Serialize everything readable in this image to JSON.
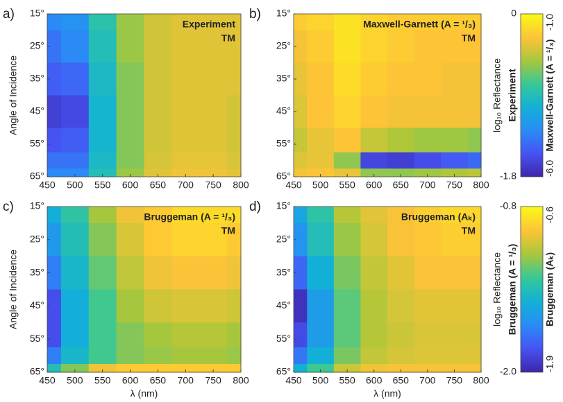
{
  "chart_data": [
    {
      "type": "heatmap",
      "panel_label": "a)",
      "title": "Experiment",
      "subtitle": "TM",
      "ylabel": "Angle of Incidence",
      "colormap": "parula",
      "x": [
        450,
        500,
        550,
        600,
        650,
        700,
        750,
        800
      ],
      "y": [
        15,
        25,
        35,
        45,
        55,
        60,
        65
      ],
      "z": [
        [
          -1.3,
          -1.25,
          -0.85,
          -0.55,
          -0.4,
          -0.35,
          -0.35,
          -0.35
        ],
        [
          -1.4,
          -1.3,
          -0.9,
          -0.55,
          -0.4,
          -0.35,
          -0.35,
          -0.35
        ],
        [
          -1.5,
          -1.45,
          -0.95,
          -0.6,
          -0.4,
          -0.35,
          -0.35,
          -0.35
        ],
        [
          -1.65,
          -1.6,
          -1.0,
          -0.6,
          -0.4,
          -0.35,
          -0.35,
          -0.4
        ],
        [
          -1.55,
          -1.5,
          -1.0,
          -0.6,
          -0.4,
          -0.35,
          -0.35,
          -0.4
        ],
        [
          -1.4,
          -1.4,
          -0.95,
          -0.6,
          -0.38,
          -0.33,
          -0.33,
          -0.38
        ],
        [
          -1.3,
          -1.3,
          -0.9,
          -0.55,
          -0.35,
          -0.3,
          -0.3,
          -0.35
        ]
      ],
      "xlim": [
        450,
        800
      ],
      "ylim": [
        15,
        65
      ],
      "xticks": [
        450,
        500,
        550,
        600,
        650,
        700,
        750,
        800
      ],
      "yticks": [
        {
          "value": 15,
          "label": "15°"
        },
        {
          "value": 25,
          "label": "25°"
        },
        {
          "value": 35,
          "label": "35°"
        },
        {
          "value": 45,
          "label": "45°"
        },
        {
          "value": 55,
          "label": "55°"
        },
        {
          "value": 65,
          "label": "65°"
        }
      ],
      "zlim": [
        -1.8,
        0
      ],
      "colorbar": {
        "side": "left",
        "label": "log₁₀ Reflectance",
        "ticks": [
          0,
          -1.8
        ]
      }
    },
    {
      "type": "heatmap",
      "panel_label": "b)",
      "title": "Maxwell-Garnett (A = ¹/₃)",
      "subtitle": "TM",
      "colormap": "parula",
      "x": [
        450,
        500,
        550,
        600,
        650,
        700,
        750,
        800
      ],
      "y": [
        15,
        25,
        35,
        45,
        55,
        60,
        65
      ],
      "z": [
        [
          -1.6,
          -1.5,
          -1.3,
          -1.5,
          -1.6,
          -1.6,
          -1.6,
          -1.6
        ],
        [
          -1.8,
          -1.6,
          -1.3,
          -1.5,
          -1.6,
          -1.7,
          -1.7,
          -1.7
        ],
        [
          -1.9,
          -1.7,
          -1.4,
          -1.6,
          -1.7,
          -1.7,
          -1.8,
          -1.8
        ],
        [
          -2.0,
          -1.7,
          -1.5,
          -1.7,
          -1.8,
          -1.8,
          -1.8,
          -1.8
        ],
        [
          -2.2,
          -1.9,
          -1.7,
          -2.2,
          -2.4,
          -2.5,
          -2.5,
          -2.6
        ],
        [
          -2.0,
          -1.9,
          -2.6,
          -5.5,
          -5.6,
          -5.4,
          -5.2,
          -5.0
        ],
        [
          -1.8,
          -1.7,
          -1.9,
          -2.6,
          -2.6,
          -2.5,
          -2.4,
          -2.3
        ]
      ],
      "xlim": [
        450,
        800
      ],
      "ylim": [
        15,
        65
      ],
      "xticks": [
        450,
        500,
        550,
        600,
        650,
        700,
        750,
        800
      ],
      "yticks": [
        {
          "value": 15,
          "label": "15°"
        },
        {
          "value": 25,
          "label": "25°"
        },
        {
          "value": 35,
          "label": "35°"
        },
        {
          "value": 45,
          "label": "45°"
        },
        {
          "value": 55,
          "label": "55°"
        },
        {
          "value": 65,
          "label": "65°"
        }
      ],
      "zlim": [
        -6,
        -1
      ],
      "colorbar": {
        "side": "right",
        "ticks": [
          {
            "value": -1,
            "label": "-1.0"
          },
          {
            "value": -6,
            "label": "-6.0"
          }
        ]
      }
    },
    {
      "type": "heatmap",
      "panel_label": "c)",
      "title": "Bruggeman (A = ¹/₃)",
      "subtitle": "TM",
      "ylabel": "Angle of Incidence",
      "xlabel": "λ (nm)",
      "colormap": "parula",
      "x": [
        450,
        500,
        550,
        600,
        650,
        700,
        750,
        800
      ],
      "y": [
        15,
        25,
        35,
        45,
        55,
        60,
        65
      ],
      "z": [
        [
          -1.5,
          -1.35,
          -1.15,
          -1.0,
          -0.95,
          -0.9,
          -0.9,
          -0.9
        ],
        [
          -1.6,
          -1.4,
          -1.2,
          -1.05,
          -0.95,
          -0.92,
          -0.92,
          -0.95
        ],
        [
          -1.7,
          -1.45,
          -1.25,
          -1.1,
          -1.0,
          -0.98,
          -0.98,
          -1.0
        ],
        [
          -1.85,
          -1.5,
          -1.3,
          -1.15,
          -1.07,
          -1.05,
          -1.05,
          -1.07
        ],
        [
          -1.85,
          -1.5,
          -1.3,
          -1.2,
          -1.15,
          -1.12,
          -1.12,
          -1.15
        ],
        [
          -1.7,
          -1.45,
          -1.3,
          -1.2,
          -1.17,
          -1.15,
          -1.15,
          -1.17
        ],
        [
          -1.4,
          -1.2,
          -1.0,
          -0.95,
          -0.95,
          -0.95,
          -0.95,
          -0.95
        ]
      ],
      "xlim": [
        450,
        800
      ],
      "ylim": [
        15,
        65
      ],
      "xticks": [
        450,
        500,
        550,
        600,
        650,
        700,
        750,
        800
      ],
      "yticks": [
        {
          "value": 15,
          "label": "15°"
        },
        {
          "value": 25,
          "label": "25°"
        },
        {
          "value": 35,
          "label": "35°"
        },
        {
          "value": 45,
          "label": "45°"
        },
        {
          "value": 55,
          "label": "55°"
        },
        {
          "value": 65,
          "label": "65°"
        }
      ],
      "zlim": [
        -2,
        -0.8
      ],
      "colorbar": {
        "side": "left",
        "label": "log₁₀ Reflectance",
        "ticks": [
          -0.8,
          {
            "value": -2,
            "label": "-2.0"
          }
        ]
      }
    },
    {
      "type": "heatmap",
      "panel_label": "d)",
      "title": "Bruggeman (Aₖ)",
      "subtitle": "TM",
      "xlabel": "λ (nm)",
      "colormap": "parula",
      "x": [
        450,
        500,
        550,
        600,
        650,
        700,
        750,
        800
      ],
      "y": [
        15,
        25,
        35,
        45,
        55,
        60,
        65
      ],
      "z": [
        [
          -1.4,
          -1.2,
          -0.95,
          -0.85,
          -0.8,
          -0.75,
          -0.72,
          -0.72
        ],
        [
          -1.5,
          -1.25,
          -1.0,
          -0.88,
          -0.8,
          -0.77,
          -0.75,
          -0.75
        ],
        [
          -1.65,
          -1.35,
          -1.05,
          -0.92,
          -0.85,
          -0.8,
          -0.8,
          -0.8
        ],
        [
          -1.85,
          -1.45,
          -1.1,
          -0.95,
          -0.88,
          -0.85,
          -0.85,
          -0.85
        ],
        [
          -1.75,
          -1.45,
          -1.1,
          -0.95,
          -0.9,
          -0.87,
          -0.87,
          -0.87
        ],
        [
          -1.6,
          -1.35,
          -1.05,
          -0.92,
          -0.88,
          -0.86,
          -0.86,
          -0.86
        ],
        [
          -1.35,
          -1.15,
          -0.9,
          -0.82,
          -0.8,
          -0.8,
          -0.8,
          -0.8
        ]
      ],
      "xlim": [
        450,
        800
      ],
      "ylim": [
        15,
        65
      ],
      "xticks": [
        450,
        500,
        550,
        600,
        650,
        700,
        750,
        800
      ],
      "yticks": [
        {
          "value": 15,
          "label": "15°"
        },
        {
          "value": 25,
          "label": "25°"
        },
        {
          "value": 35,
          "label": "35°"
        },
        {
          "value": 45,
          "label": "45°"
        },
        {
          "value": 55,
          "label": "55°"
        },
        {
          "value": 65,
          "label": "65°"
        }
      ],
      "zlim": [
        -1.9,
        -0.6
      ],
      "colorbar": {
        "side": "right",
        "ticks": [
          -0.6,
          -1.9
        ]
      }
    }
  ]
}
